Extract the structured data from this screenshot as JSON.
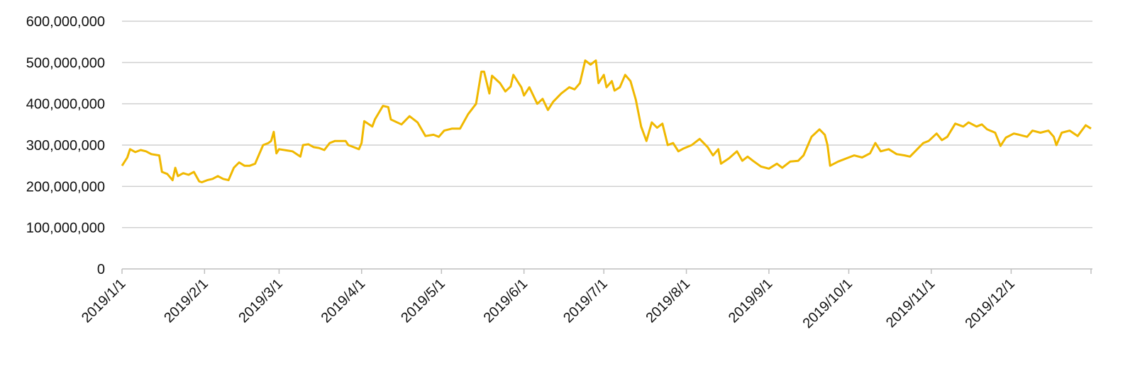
{
  "chart_data": {
    "type": "line",
    "color": "#f0b800",
    "grid": true,
    "xlim": [
      "2019/1/1",
      "2019/12/31"
    ],
    "xticks": [
      "2019/1/1",
      "2019/2/1",
      "2019/3/1",
      "2019/4/1",
      "2019/5/1",
      "2019/6/1",
      "2019/7/1",
      "2019/8/1",
      "2019/9/1",
      "2019/10/1",
      "2019/11/1",
      "2019/12/1"
    ],
    "ylim": [
      0,
      600000000
    ],
    "yticks": [
      0,
      {
        "value": 100000000,
        "label": "100,000,000"
      },
      {
        "value": 200000000,
        "label": "200,000,000"
      },
      {
        "value": 300000000,
        "label": "300,000,000"
      },
      {
        "value": 400000000,
        "label": "400,000,000"
      },
      {
        "value": 500000000,
        "label": "500,000,000"
      },
      {
        "value": 600000000,
        "label": "600,000,000"
      }
    ],
    "x": [
      "2019/1/1",
      "2019/1/3",
      "2019/1/4",
      "2019/1/6",
      "2019/1/8",
      "2019/1/10",
      "2019/1/12",
      "2019/1/15",
      "2019/1/16",
      "2019/1/18",
      "2019/1/20",
      "2019/1/21",
      "2019/1/22",
      "2019/1/24",
      "2019/1/26",
      "2019/1/28",
      "2019/1/30",
      "2019/1/31",
      "2019/2/2",
      "2019/2/4",
      "2019/2/6",
      "2019/2/8",
      "2019/2/10",
      "2019/2/12",
      "2019/2/14",
      "2019/2/16",
      "2019/2/18",
      "2019/2/20",
      "2019/2/23",
      "2019/2/25",
      "2019/2/26",
      "2019/2/27",
      "2019/2/28",
      "2019/3/1",
      "2019/3/4",
      "2019/3/6",
      "2019/3/9",
      "2019/3/10",
      "2019/3/12",
      "2019/3/14",
      "2019/3/16",
      "2019/3/18",
      "2019/3/20",
      "2019/3/22",
      "2019/3/26",
      "2019/3/27",
      "2019/3/29",
      "2019/3/31",
      "2019/4/1",
      "2019/4/2",
      "2019/4/5",
      "2019/4/6",
      "2019/4/9",
      "2019/4/11",
      "2019/4/12",
      "2019/4/16",
      "2019/4/19",
      "2019/4/22",
      "2019/4/25",
      "2019/4/28",
      "2019/4/30",
      "2019/5/2",
      "2019/5/5",
      "2019/5/8",
      "2019/5/11",
      "2019/5/14",
      "2019/5/16",
      "2019/5/17",
      "2019/5/19",
      "2019/5/20",
      "2019/5/23",
      "2019/5/25",
      "2019/5/27",
      "2019/5/28",
      "2019/5/31",
      "2019/6/1",
      "2019/6/3",
      "2019/6/6",
      "2019/6/8",
      "2019/6/10",
      "2019/6/12",
      "2019/6/15",
      "2019/6/18",
      "2019/6/20",
      "2019/6/22",
      "2019/6/24",
      "2019/6/26",
      "2019/6/28",
      "2019/6/29",
      "2019/7/1",
      "2019/7/2",
      "2019/7/4",
      "2019/7/5",
      "2019/7/7",
      "2019/7/9",
      "2019/7/11",
      "2019/7/13",
      "2019/7/15",
      "2019/7/17",
      "2019/7/19",
      "2019/7/21",
      "2019/7/23",
      "2019/7/25",
      "2019/7/27",
      "2019/7/29",
      "2019/7/31",
      "2019/8/3",
      "2019/8/6",
      "2019/8/9",
      "2019/8/11",
      "2019/8/13",
      "2019/8/14",
      "2019/8/17",
      "2019/8/20",
      "2019/8/22",
      "2019/8/24",
      "2019/8/26",
      "2019/8/29",
      "2019/9/1",
      "2019/9/4",
      "2019/9/6",
      "2019/9/9",
      "2019/9/12",
      "2019/9/14",
      "2019/9/17",
      "2019/9/20",
      "2019/9/22",
      "2019/9/23",
      "2019/9/24",
      "2019/9/27",
      "2019/10/1",
      "2019/10/3",
      "2019/10/6",
      "2019/10/9",
      "2019/10/11",
      "2019/10/13",
      "2019/10/16",
      "2019/10/19",
      "2019/10/22",
      "2019/10/24",
      "2019/10/29",
      "2019/10/31",
      "2019/11/3",
      "2019/11/5",
      "2019/11/7",
      "2019/11/10",
      "2019/11/13",
      "2019/11/15",
      "2019/11/18",
      "2019/11/20",
      "2019/11/22",
      "2019/11/25",
      "2019/11/27",
      "2019/11/29",
      "2019/12/2",
      "2019/12/4",
      "2019/12/7",
      "2019/12/9",
      "2019/12/12",
      "2019/12/15",
      "2019/12/17",
      "2019/12/18",
      "2019/12/20",
      "2019/12/23",
      "2019/12/26",
      "2019/12/29",
      "2019/12/31"
    ],
    "values": [
      250000000,
      270000000,
      290000000,
      283000000,
      288000000,
      285000000,
      278000000,
      275000000,
      235000000,
      230000000,
      215000000,
      245000000,
      225000000,
      232000000,
      228000000,
      235000000,
      212000000,
      210000000,
      215000000,
      218000000,
      225000000,
      218000000,
      215000000,
      245000000,
      258000000,
      250000000,
      250000000,
      255000000,
      300000000,
      305000000,
      310000000,
      332000000,
      280000000,
      290000000,
      287000000,
      285000000,
      272000000,
      300000000,
      302000000,
      295000000,
      293000000,
      288000000,
      305000000,
      310000000,
      310000000,
      300000000,
      295000000,
      290000000,
      305000000,
      358000000,
      345000000,
      362000000,
      395000000,
      392000000,
      362000000,
      350000000,
      370000000,
      355000000,
      322000000,
      325000000,
      320000000,
      335000000,
      340000000,
      340000000,
      375000000,
      400000000,
      478000000,
      478000000,
      425000000,
      468000000,
      450000000,
      430000000,
      442000000,
      470000000,
      440000000,
      420000000,
      440000000,
      400000000,
      412000000,
      385000000,
      405000000,
      425000000,
      440000000,
      435000000,
      450000000,
      505000000,
      495000000,
      505000000,
      450000000,
      470000000,
      440000000,
      455000000,
      432000000,
      440000000,
      470000000,
      455000000,
      410000000,
      345000000,
      310000000,
      355000000,
      342000000,
      352000000,
      300000000,
      305000000,
      285000000,
      292000000,
      300000000,
      315000000,
      295000000,
      275000000,
      290000000,
      255000000,
      268000000,
      285000000,
      262000000,
      272000000,
      262000000,
      248000000,
      243000000,
      255000000,
      245000000,
      260000000,
      262000000,
      275000000,
      320000000,
      338000000,
      325000000,
      300000000,
      250000000,
      260000000,
      270000000,
      275000000,
      270000000,
      280000000,
      305000000,
      285000000,
      290000000,
      278000000,
      275000000,
      272000000,
      305000000,
      310000000,
      328000000,
      312000000,
      320000000,
      352000000,
      345000000,
      355000000,
      345000000,
      350000000,
      338000000,
      330000000,
      298000000,
      318000000,
      328000000,
      325000000,
      320000000,
      335000000,
      330000000,
      335000000,
      320000000,
      300000000,
      330000000,
      335000000,
      322000000,
      348000000,
      340000000
    ]
  }
}
